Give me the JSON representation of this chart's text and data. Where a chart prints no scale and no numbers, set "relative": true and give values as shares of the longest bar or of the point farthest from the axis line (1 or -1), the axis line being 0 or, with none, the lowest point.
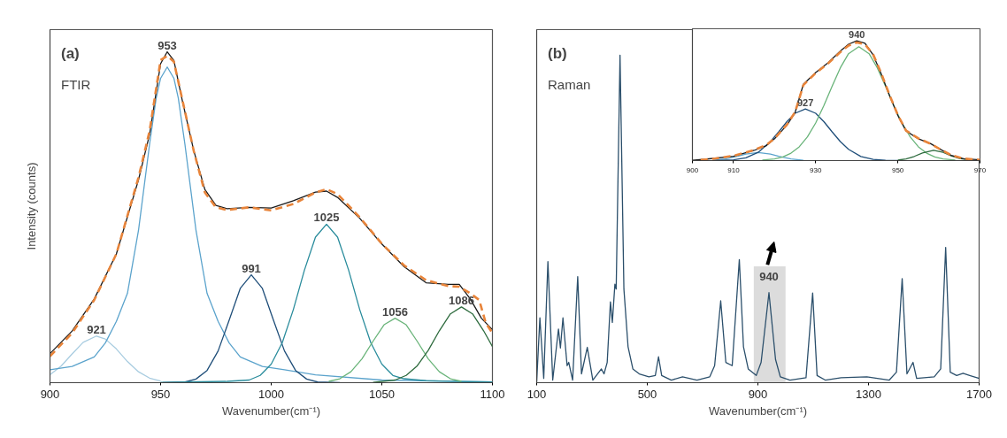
{
  "chart_data": [
    {
      "type": "line",
      "title": "(a)",
      "subtitle": "FTIR",
      "xlabel": "Wavenumber(cm⁻¹)",
      "ylabel": "Intensity (counts)",
      "relative": true,
      "tick_labels": "x",
      "xlim": [
        900,
        1100
      ],
      "xticks": [
        900,
        950,
        1000,
        1050,
        1100
      ],
      "series": [
        {
          "color": "#a8cce0",
          "x": [
            900,
            905,
            910,
            915,
            921,
            925,
            930,
            935,
            940,
            945,
            950
          ],
          "values": [
            0.024,
            0.05,
            0.087,
            0.122,
            0.141,
            0.132,
            0.102,
            0.064,
            0.033,
            0.014,
            0.005
          ]
        },
        {
          "color": "#5ba3cc",
          "x": [
            900,
            910,
            920,
            925,
            930,
            935,
            940,
            945,
            948,
            950,
            953,
            956,
            958,
            961,
            966,
            971,
            976,
            981,
            986,
            996,
            1006,
            1020,
            1050,
            1100
          ],
          "values": [
            0.039,
            0.049,
            0.078,
            0.12,
            0.185,
            0.27,
            0.46,
            0.72,
            0.86,
            0.92,
            0.954,
            0.92,
            0.86,
            0.72,
            0.46,
            0.27,
            0.185,
            0.12,
            0.078,
            0.049,
            0.039,
            0.024,
            0.008,
            0.002
          ]
        },
        {
          "color": "#1f4e79",
          "x": [
            951,
            961,
            966,
            971,
            976,
            981,
            986,
            991,
            996,
            1001,
            1006,
            1011,
            1016,
            1021,
            1031
          ],
          "values": [
            0.0,
            0.002,
            0.011,
            0.037,
            0.096,
            0.189,
            0.285,
            0.326,
            0.285,
            0.189,
            0.096,
            0.037,
            0.011,
            0.002,
            0.0
          ]
        },
        {
          "color": "#2a8c9c",
          "x": [
            950,
            980,
            990,
            995,
            1000,
            1005,
            1010,
            1015,
            1020,
            1025,
            1030,
            1035,
            1040,
            1045,
            1050,
            1055,
            1060,
            1070,
            1100
          ],
          "values": [
            0.001,
            0.004,
            0.008,
            0.022,
            0.056,
            0.121,
            0.221,
            0.34,
            0.44,
            0.479,
            0.44,
            0.34,
            0.221,
            0.121,
            0.056,
            0.022,
            0.012,
            0.006,
            0.002
          ]
        },
        {
          "color": "#6ab47a",
          "x": [
            1026,
            1031,
            1036,
            1041,
            1046,
            1051,
            1056,
            1061,
            1066,
            1071,
            1076,
            1081,
            1086
          ],
          "values": [
            0.004,
            0.012,
            0.033,
            0.072,
            0.125,
            0.175,
            0.195,
            0.175,
            0.125,
            0.072,
            0.033,
            0.012,
            0.004
          ]
        },
        {
          "color": "#2e6b3e",
          "x": [
            1046,
            1056,
            1061,
            1066,
            1071,
            1076,
            1081,
            1086,
            1091,
            1096,
            1100
          ],
          "values": [
            0.001,
            0.008,
            0.022,
            0.051,
            0.098,
            0.157,
            0.208,
            0.229,
            0.208,
            0.157,
            0.109
          ]
        },
        {
          "color": "#1a1a1a",
          "x": [
            900,
            910,
            920,
            930,
            940,
            945,
            950,
            953,
            956,
            960,
            965,
            970,
            975,
            980,
            990,
            1000,
            1010,
            1020,
            1025,
            1030,
            1040,
            1050,
            1060,
            1070,
            1080,
            1085,
            1090,
            1095,
            1100
          ],
          "values": [
            0.088,
            0.156,
            0.253,
            0.389,
            0.613,
            0.75,
            0.964,
            1.0,
            0.974,
            0.847,
            0.701,
            0.584,
            0.536,
            0.526,
            0.53,
            0.528,
            0.55,
            0.576,
            0.579,
            0.56,
            0.497,
            0.419,
            0.351,
            0.302,
            0.297,
            0.297,
            0.253,
            0.195,
            0.16
          ]
        },
        {
          "color": "#e8843a",
          "line_style": "dashed",
          "x": [
            900,
            910,
            920,
            930,
            940,
            945,
            950,
            953,
            956,
            960,
            965,
            970,
            975,
            980,
            990,
            1000,
            1010,
            1020,
            1025,
            1030,
            1040,
            1050,
            1060,
            1070,
            1080,
            1085,
            1090,
            1094,
            1097,
            1100
          ],
          "values": [
            0.08,
            0.15,
            0.25,
            0.389,
            0.62,
            0.76,
            0.975,
            0.988,
            0.97,
            0.85,
            0.7,
            0.575,
            0.53,
            0.522,
            0.53,
            0.521,
            0.54,
            0.575,
            0.585,
            0.57,
            0.5,
            0.42,
            0.355,
            0.31,
            0.292,
            0.29,
            0.27,
            0.25,
            0.18,
            0.15
          ]
        }
      ],
      "annotations": [
        {
          "text": "953",
          "x": 953,
          "y": 1.0
        },
        {
          "text": "921",
          "x": 921,
          "y": 0.141
        },
        {
          "text": "991",
          "x": 991,
          "y": 0.326
        },
        {
          "text": "1025",
          "x": 1025,
          "y": 0.479
        },
        {
          "text": "1056",
          "x": 1056,
          "y": 0.195
        },
        {
          "text": "1086",
          "x": 1086,
          "y": 0.229
        }
      ]
    },
    {
      "type": "line",
      "title": "(b)",
      "subtitle": "Raman",
      "xlabel": "Wavenumber(cm⁻¹)",
      "relative": true,
      "tick_labels": "x",
      "xlim": [
        100,
        1700
      ],
      "xticks": [
        100,
        500,
        900,
        1300,
        1700
      ],
      "bands": [
        {
          "axis": "x",
          "from": 885,
          "to": 1000,
          "color": "#dcdcdc"
        }
      ],
      "series": [
        {
          "color": "#2b4f6b",
          "x": [
            100,
            111.6,
            125.5,
            140.6,
            158,
            178.8,
            185.8,
            195,
            210,
            216,
            230,
            248.4,
            262,
            283,
            303,
            334,
            343.5,
            355,
            366.7,
            373.6,
            382.9,
            387.5,
            401.4,
            415.4,
            430.4,
            447.8,
            471,
            505.8,
            529,
            540.6,
            552,
            587,
            627.5,
            679.7,
            726,
            743.5,
            765.5,
            784,
            807,
            832.8,
            847.8,
            865,
            894,
            911.6,
            940,
            963.8,
            981,
            1016,
            1074,
            1098,
            1114,
            1143.5,
            1201,
            1294,
            1375,
            1401,
            1421.7,
            1439,
            1461,
            1474,
            1537.7,
            1561,
            1579,
            1595.6,
            1618.8,
            1642,
            1665.8,
            1700
          ],
          "values": [
            0.003,
            0.198,
            0.013,
            0.37,
            0.008,
            0.164,
            0.106,
            0.198,
            0.052,
            0.062,
            0.008,
            0.324,
            0.027,
            0.108,
            0.008,
            0.042,
            0.027,
            0.062,
            0.247,
            0.184,
            0.301,
            0.286,
            1.0,
            0.286,
            0.11,
            0.042,
            0.027,
            0.018,
            0.022,
            0.079,
            0.022,
            0.008,
            0.018,
            0.008,
            0.018,
            0.052,
            0.25,
            0.062,
            0.052,
            0.376,
            0.11,
            0.042,
            0.022,
            0.062,
            0.275,
            0.071,
            0.018,
            0.008,
            0.015,
            0.274,
            0.022,
            0.008,
            0.015,
            0.018,
            0.008,
            0.032,
            0.318,
            0.027,
            0.062,
            0.013,
            0.018,
            0.042,
            0.413,
            0.032,
            0.022,
            0.029,
            0.022,
            0.013
          ]
        }
      ],
      "annotations": [
        {
          "text": "940",
          "x": 940,
          "y": 0.275
        }
      ]
    },
    {
      "type": "line",
      "relative": true,
      "tick_labels": "x",
      "xlim": [
        900,
        970
      ],
      "xticks": [
        900,
        910,
        930,
        950,
        970
      ],
      "series": [
        {
          "color": "#5ba3cc",
          "x": [
            905,
            908,
            911,
            913,
            916,
            919,
            921,
            924,
            927
          ],
          "values": [
            0.003,
            0.014,
            0.036,
            0.054,
            0.068,
            0.054,
            0.036,
            0.014,
            0.003
          ]
        },
        {
          "color": "#1f4e79",
          "x": [
            905,
            910,
            913,
            916,
            919,
            921,
            923,
            925,
            927.5,
            930,
            932,
            934,
            936,
            938,
            941,
            944,
            947,
            950
          ],
          "values": [
            0.001,
            0.006,
            0.023,
            0.069,
            0.159,
            0.24,
            0.325,
            0.395,
            0.431,
            0.395,
            0.325,
            0.24,
            0.159,
            0.094,
            0.034,
            0.01,
            0.002,
            0.0
          ]
        },
        {
          "color": "#6ab47a",
          "x": [
            917,
            920,
            922,
            924,
            926,
            928,
            930,
            932,
            934,
            936,
            938,
            940.5,
            943,
            945,
            947,
            949,
            951,
            953,
            955,
            957,
            959,
            961,
            964
          ],
          "values": [
            0.004,
            0.014,
            0.03,
            0.062,
            0.115,
            0.198,
            0.314,
            0.46,
            0.621,
            0.774,
            0.892,
            0.95,
            0.892,
            0.774,
            0.621,
            0.46,
            0.314,
            0.198,
            0.115,
            0.062,
            0.03,
            0.014,
            0.004
          ]
        },
        {
          "color": "#2e6b3e",
          "x": [
            950,
            952,
            954,
            956,
            958.7,
            961,
            963,
            965,
            968
          ],
          "values": [
            0.004,
            0.014,
            0.035,
            0.063,
            0.085,
            0.069,
            0.04,
            0.017,
            0.002
          ]
        },
        {
          "color": "#1a1a1a",
          "x": [
            900,
            903,
            910,
            915,
            918,
            920,
            923,
            925,
            927,
            930,
            933,
            936,
            938,
            940,
            942,
            944,
            946,
            948,
            950,
            952,
            955,
            958,
            960,
            963,
            966,
            970
          ],
          "values": [
            0.003,
            0.011,
            0.036,
            0.085,
            0.125,
            0.182,
            0.296,
            0.402,
            0.637,
            0.735,
            0.816,
            0.914,
            0.971,
            1.0,
            0.979,
            0.881,
            0.719,
            0.54,
            0.377,
            0.247,
            0.182,
            0.141,
            0.101,
            0.044,
            0.015,
            0.007
          ]
        },
        {
          "color": "#e8843a",
          "line_style": "dashed",
          "x": [
            902,
            905,
            910,
            915,
            918,
            920,
            923,
            925,
            927,
            930,
            933,
            936,
            938,
            940,
            942,
            944,
            946,
            948,
            950,
            952,
            955,
            958,
            960,
            963,
            966,
            970
          ],
          "values": [
            0.005,
            0.015,
            0.04,
            0.088,
            0.13,
            0.185,
            0.3,
            0.405,
            0.63,
            0.73,
            0.81,
            0.905,
            0.96,
            0.985,
            0.97,
            0.885,
            0.725,
            0.545,
            0.38,
            0.25,
            0.185,
            0.14,
            0.1,
            0.045,
            0.017,
            0.006
          ]
        }
      ],
      "annotations": [
        {
          "text": "940",
          "x": 940,
          "y": 1.0
        },
        {
          "text": "927",
          "x": 927.5,
          "y": 0.431
        }
      ]
    }
  ]
}
